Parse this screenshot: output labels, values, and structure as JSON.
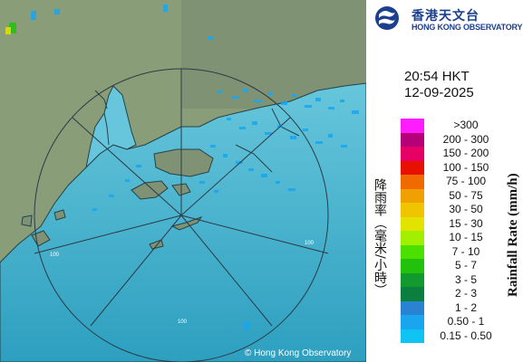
{
  "header": {
    "name_zh": "香港天文台",
    "name_en": "HONG KONG OBSERVATORY"
  },
  "radar": {
    "time": "20:54 HKT",
    "date": "12-09-2025",
    "range_ring_label": "100",
    "copyright": "© Hong Kong Observatory"
  },
  "legend": {
    "title_zh": "降雨率（毫米/小時）",
    "title_en": "Rainfall Rate (mm/h)",
    "items": [
      {
        "label": ">300",
        "color": "#ff1dff"
      },
      {
        "label": "200 - 300",
        "color": "#b60079"
      },
      {
        "label": "150 - 200",
        "color": "#e60066"
      },
      {
        "label": "100 - 150",
        "color": "#e81000"
      },
      {
        "label": "75 - 100",
        "color": "#f06a00"
      },
      {
        "label": "50 - 75",
        "color": "#f0a000"
      },
      {
        "label": "30 - 50",
        "color": "#f0c400"
      },
      {
        "label": "15 - 30",
        "color": "#e3e300"
      },
      {
        "label": "10 - 15",
        "color": "#a2f000"
      },
      {
        "label": "7 - 10",
        "color": "#4ce000"
      },
      {
        "label": "5 - 7",
        "color": "#22c20c"
      },
      {
        "label": "3 - 5",
        "color": "#129a2e"
      },
      {
        "label": "2 - 3",
        "color": "#0c7e3e"
      },
      {
        "label": "1 - 2",
        "color": "#2a82d2"
      },
      {
        "label": "0.50 - 1",
        "color": "#1aa6ee"
      },
      {
        "label": "0.15 - 0.50",
        "color": "#0fc4f2"
      }
    ]
  }
}
